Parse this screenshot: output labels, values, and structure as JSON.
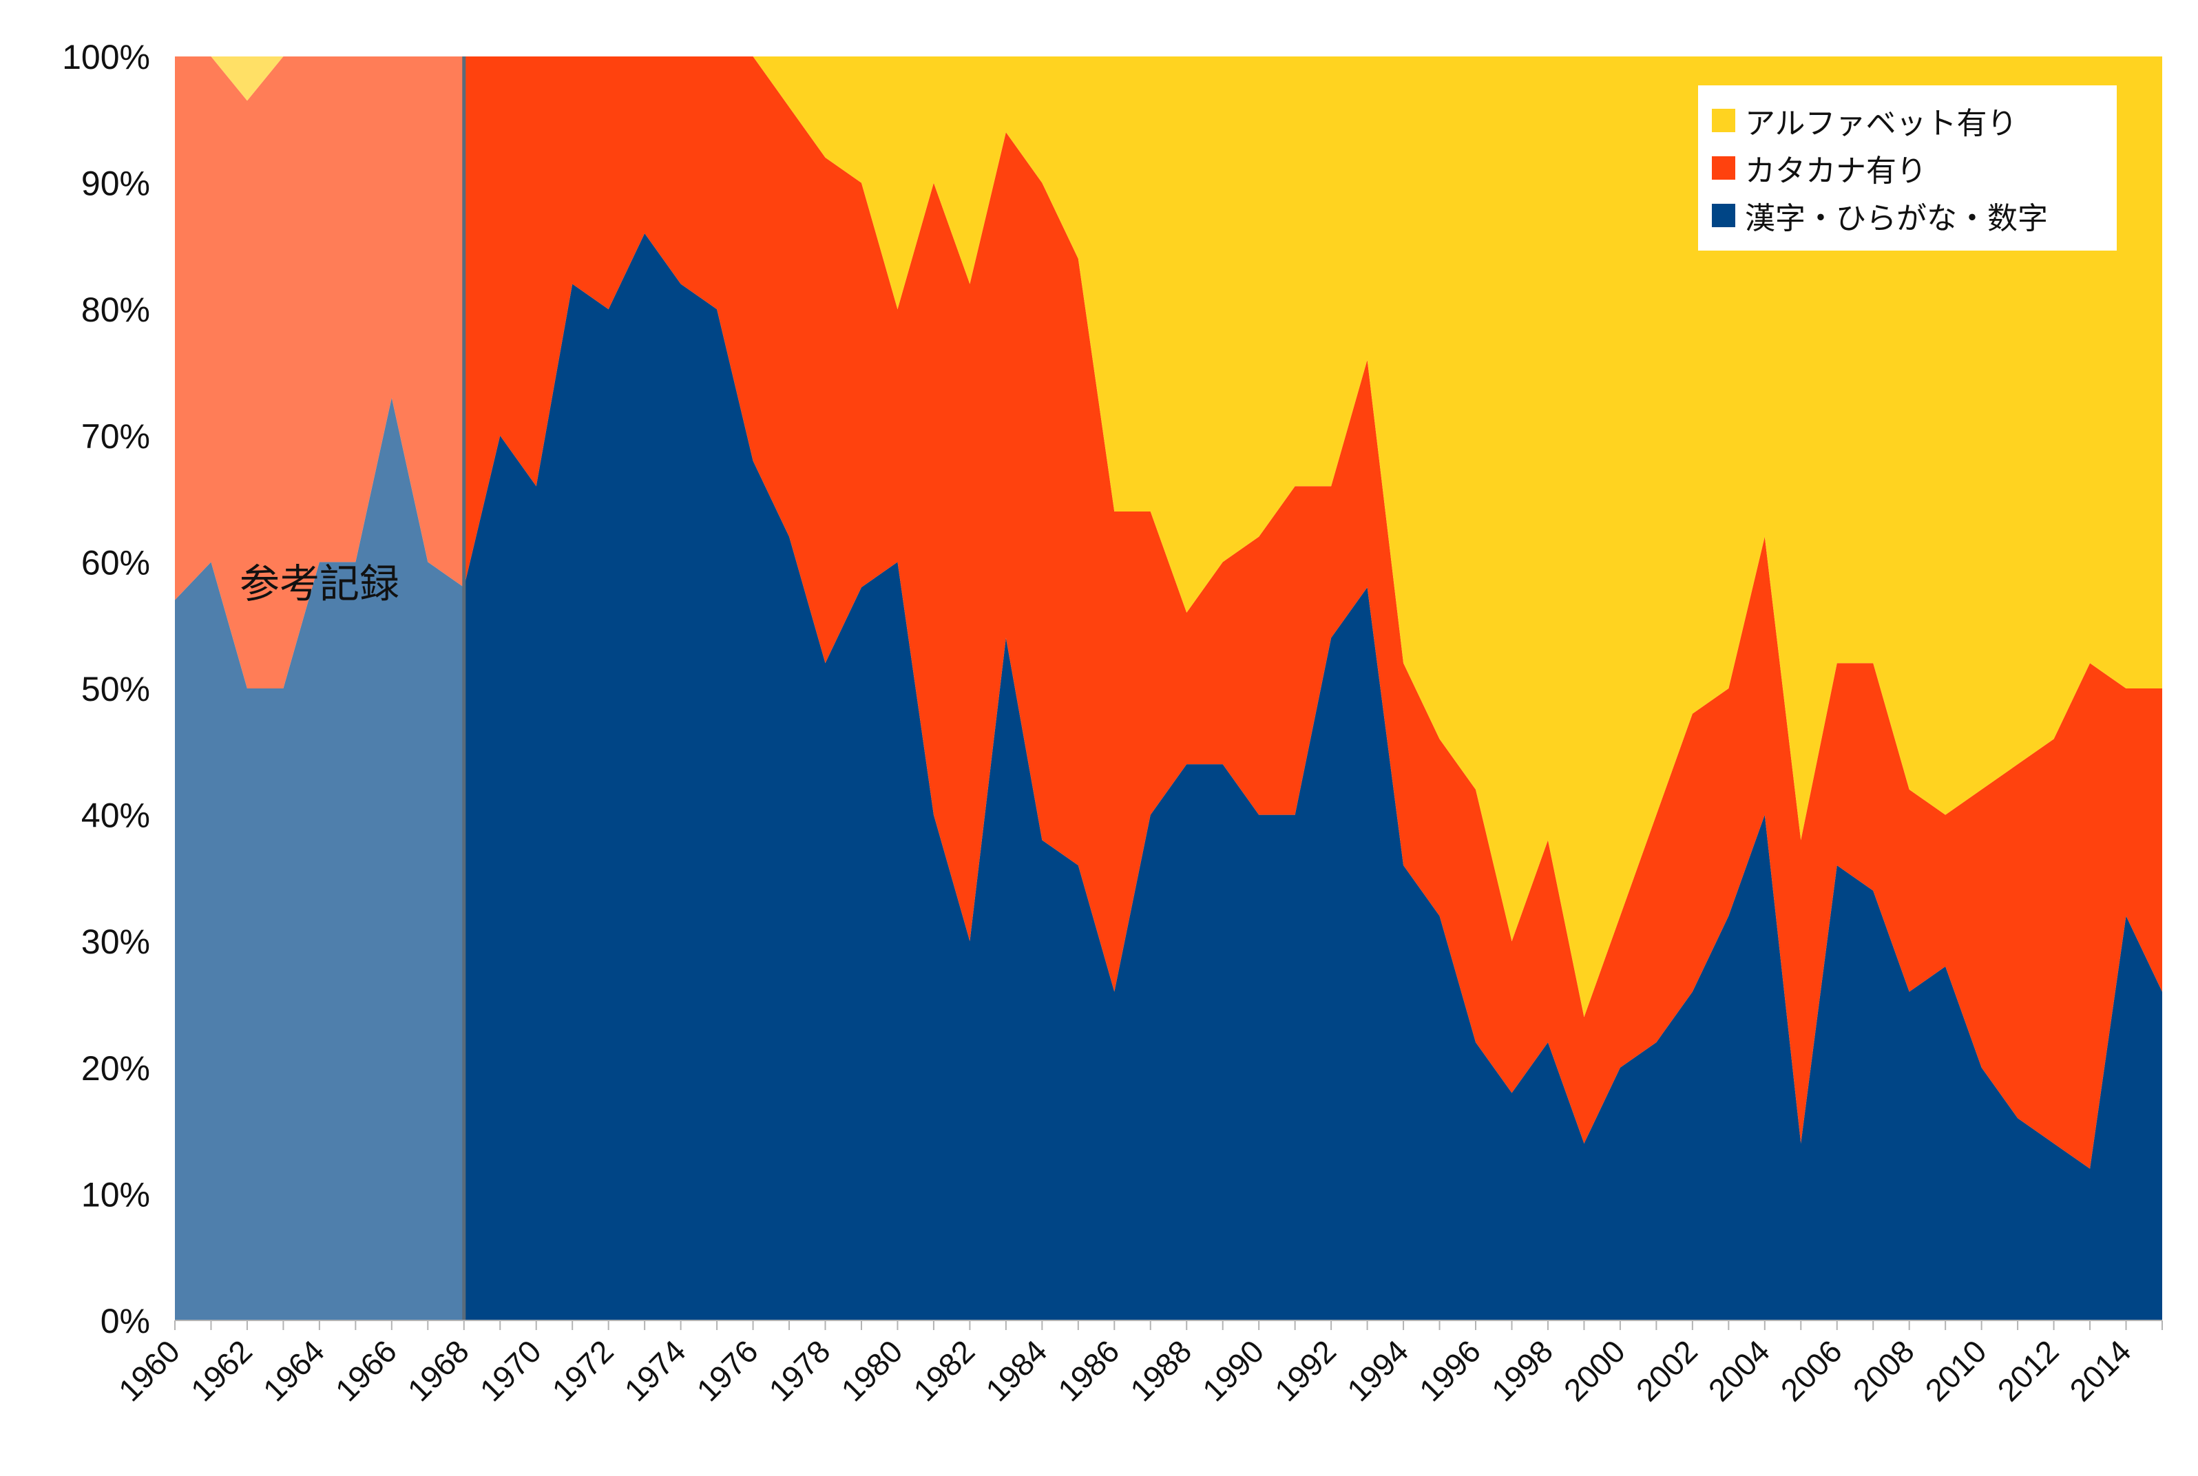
{
  "chart_data": {
    "type": "area",
    "stacked": true,
    "normalized": true,
    "x": [
      1960,
      1961,
      1962,
      1963,
      1964,
      1965,
      1966,
      1967,
      1968,
      1969,
      1970,
      1971,
      1972,
      1973,
      1974,
      1975,
      1976,
      1977,
      1978,
      1979,
      1980,
      1981,
      1982,
      1983,
      1984,
      1985,
      1986,
      1987,
      1988,
      1989,
      1990,
      1991,
      1992,
      1993,
      1994,
      1995,
      1996,
      1997,
      1998,
      1999,
      2000,
      2001,
      2002,
      2003,
      2004,
      2005,
      2006,
      2007,
      2008,
      2009,
      2010,
      2011,
      2012,
      2013,
      2014,
      2015
    ],
    "x_tick_labels": [
      "1960",
      "1962",
      "1964",
      "1966",
      "1968",
      "1970",
      "1972",
      "1974",
      "1976",
      "1978",
      "1980",
      "1982",
      "1984",
      "1986",
      "1988",
      "1990",
      "1992",
      "1994",
      "1996",
      "1998",
      "2000",
      "2002",
      "2004",
      "2006",
      "2008",
      "2010",
      "2012",
      "2014"
    ],
    "y_tick_labels": [
      "0%",
      "10%",
      "20%",
      "30%",
      "40%",
      "50%",
      "60%",
      "70%",
      "80%",
      "90%",
      "100%"
    ],
    "ylim": [
      0,
      100
    ],
    "title": "",
    "xlabel": "",
    "ylabel": "",
    "legend_position": "top-right",
    "series": [
      {
        "name": "漢字・ひらがな・数字",
        "color": "#004586",
        "reference_color": "#4f7fac",
        "values": [
          57,
          60,
          50,
          50,
          60,
          60,
          73,
          60,
          58,
          70,
          66,
          82,
          80,
          86,
          82,
          80,
          68,
          62,
          52,
          58,
          60,
          40,
          30,
          54,
          38,
          36,
          26,
          40,
          44,
          44,
          40,
          40,
          54,
          58,
          36,
          32,
          22,
          18,
          22,
          14,
          20,
          22,
          26,
          32,
          40,
          14,
          36,
          34,
          26,
          28,
          20,
          16,
          14,
          12,
          32,
          26
        ]
      },
      {
        "name": "カタカナ有り",
        "color": "#ff420e",
        "reference_color": "#ff7d57",
        "values": [
          43,
          40,
          46.5,
          50,
          40,
          40,
          27,
          40,
          42,
          30,
          34,
          18,
          20,
          14,
          18,
          20,
          32,
          34,
          40,
          32,
          20,
          50,
          52,
          40,
          52,
          48,
          38,
          24,
          12,
          16,
          22,
          26,
          12,
          18,
          16,
          14,
          20,
          12,
          16,
          10,
          12,
          18,
          22,
          18,
          22,
          24,
          16,
          18,
          16,
          12,
          22,
          28,
          32,
          40,
          18,
          24
        ]
      },
      {
        "name": "アルファベット有り",
        "color": "#ffd320",
        "reference_color": "#ffe066",
        "values": [
          0,
          0,
          3.5,
          0,
          0,
          0,
          0,
          0,
          0,
          0,
          0,
          0,
          0,
          0,
          0,
          0,
          0,
          4,
          8,
          10,
          20,
          10,
          18,
          6,
          10,
          16,
          36,
          36,
          44,
          40,
          38,
          34,
          34,
          24,
          48,
          54,
          58,
          70,
          62,
          76,
          68,
          60,
          52,
          50,
          38,
          62,
          48,
          48,
          58,
          60,
          58,
          56,
          54,
          48,
          50,
          50
        ]
      }
    ],
    "reference_period": {
      "from": 1960,
      "to": 1968,
      "label": "参考記録"
    }
  }
}
